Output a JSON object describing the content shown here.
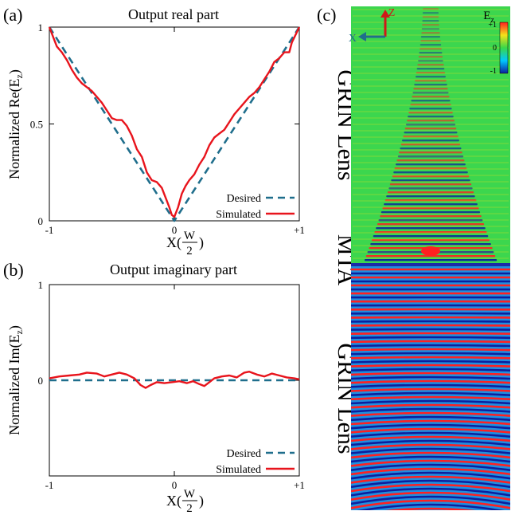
{
  "figure": {
    "panel_labels": [
      "(a)",
      "(b)",
      "(c)"
    ]
  },
  "chart_data": [
    {
      "type": "line",
      "panel": "(a)",
      "title": "Output real part",
      "ylabel": "Normalized Re(E",
      "ylabel_sub": "z",
      "ylabel_close": ")",
      "xlabel_prefix": "X(",
      "xlabel_frac_num": "W",
      "xlabel_frac_den": "2",
      "xlabel_suffix": ")",
      "xlim": [
        -1,
        1
      ],
      "ylim": [
        0,
        1
      ],
      "xticks": [
        -1,
        0,
        1
      ],
      "xtick_labels": [
        "-1",
        "0",
        "+1"
      ],
      "yticks": [
        0,
        0.5,
        1
      ],
      "ytick_labels": [
        "0",
        "0.5",
        "1"
      ],
      "legend_position": "bottom-right",
      "series": [
        {
          "name": "Desired",
          "style": "dashed",
          "color": "#1f6e8c",
          "points": [
            [
              -1,
              1.0
            ],
            [
              0,
              0.0
            ],
            [
              1,
              1.0
            ]
          ]
        },
        {
          "name": "Simulated",
          "style": "solid",
          "color": "#e8141c",
          "points": [
            [
              -1.0,
              1.0
            ],
            [
              -0.97,
              0.95
            ],
            [
              -0.94,
              0.9
            ],
            [
              -0.9,
              0.87
            ],
            [
              -0.86,
              0.83
            ],
            [
              -0.82,
              0.78
            ],
            [
              -0.78,
              0.74
            ],
            [
              -0.74,
              0.71
            ],
            [
              -0.7,
              0.69
            ],
            [
              -0.66,
              0.67
            ],
            [
              -0.62,
              0.64
            ],
            [
              -0.58,
              0.61
            ],
            [
              -0.54,
              0.57
            ],
            [
              -0.5,
              0.53
            ],
            [
              -0.46,
              0.52
            ],
            [
              -0.42,
              0.52
            ],
            [
              -0.38,
              0.49
            ],
            [
              -0.34,
              0.44
            ],
            [
              -0.3,
              0.37
            ],
            [
              -0.26,
              0.33
            ],
            [
              -0.22,
              0.25
            ],
            [
              -0.18,
              0.21
            ],
            [
              -0.14,
              0.2
            ],
            [
              -0.1,
              0.17
            ],
            [
              -0.07,
              0.12
            ],
            [
              -0.04,
              0.07
            ],
            [
              -0.02,
              0.03
            ],
            [
              0.0,
              0.02
            ],
            [
              0.03,
              0.07
            ],
            [
              0.06,
              0.14
            ],
            [
              0.09,
              0.18
            ],
            [
              0.12,
              0.21
            ],
            [
              0.16,
              0.24
            ],
            [
              0.2,
              0.29
            ],
            [
              0.24,
              0.33
            ],
            [
              0.28,
              0.39
            ],
            [
              0.32,
              0.43
            ],
            [
              0.36,
              0.45
            ],
            [
              0.4,
              0.47
            ],
            [
              0.44,
              0.51
            ],
            [
              0.48,
              0.55
            ],
            [
              0.52,
              0.58
            ],
            [
              0.56,
              0.61
            ],
            [
              0.6,
              0.64
            ],
            [
              0.64,
              0.66
            ],
            [
              0.68,
              0.69
            ],
            [
              0.72,
              0.73
            ],
            [
              0.76,
              0.77
            ],
            [
              0.8,
              0.82
            ],
            [
              0.84,
              0.84
            ],
            [
              0.88,
              0.87
            ],
            [
              0.92,
              0.87
            ],
            [
              0.94,
              0.92
            ],
            [
              0.97,
              0.96
            ],
            [
              1.0,
              1.0
            ]
          ]
        }
      ]
    },
    {
      "type": "line",
      "panel": "(b)",
      "title": "Output imaginary part",
      "ylabel": "Normalized Im(E",
      "ylabel_sub": "z",
      "ylabel_close": ")",
      "xlabel_prefix": "X(",
      "xlabel_frac_num": "W",
      "xlabel_frac_den": "2",
      "xlabel_suffix": ")",
      "xlim": [
        -1,
        1
      ],
      "ylim": [
        -1,
        1
      ],
      "xticks": [
        -1,
        0,
        1
      ],
      "xtick_labels": [
        "-1",
        "0",
        "+1"
      ],
      "yticks": [
        0,
        1
      ],
      "ytick_labels": [
        "0",
        "1"
      ],
      "legend_position": "bottom-right",
      "series": [
        {
          "name": "Desired",
          "style": "dashed",
          "color": "#1f6e8c",
          "points": [
            [
              -1,
              0.0
            ],
            [
              1,
              0.0
            ]
          ]
        },
        {
          "name": "Simulated",
          "style": "solid",
          "color": "#e8141c",
          "points": [
            [
              -1.0,
              0.02
            ],
            [
              -0.92,
              0.04
            ],
            [
              -0.84,
              0.05
            ],
            [
              -0.76,
              0.06
            ],
            [
              -0.7,
              0.08
            ],
            [
              -0.62,
              0.07
            ],
            [
              -0.56,
              0.04
            ],
            [
              -0.5,
              0.06
            ],
            [
              -0.44,
              0.08
            ],
            [
              -0.38,
              0.06
            ],
            [
              -0.32,
              0.02
            ],
            [
              -0.27,
              -0.05
            ],
            [
              -0.23,
              -0.08
            ],
            [
              -0.19,
              -0.05
            ],
            [
              -0.14,
              -0.02
            ],
            [
              -0.08,
              -0.03
            ],
            [
              -0.02,
              -0.02
            ],
            [
              0.04,
              -0.01
            ],
            [
              0.1,
              -0.03
            ],
            [
              0.15,
              -0.01
            ],
            [
              0.2,
              -0.04
            ],
            [
              0.24,
              -0.06
            ],
            [
              0.28,
              -0.02
            ],
            [
              0.32,
              0.02
            ],
            [
              0.38,
              0.04
            ],
            [
              0.44,
              0.05
            ],
            [
              0.5,
              0.03
            ],
            [
              0.56,
              0.08
            ],
            [
              0.6,
              0.09
            ],
            [
              0.66,
              0.06
            ],
            [
              0.72,
              0.04
            ],
            [
              0.78,
              0.07
            ],
            [
              0.84,
              0.05
            ],
            [
              0.9,
              0.03
            ],
            [
              0.96,
              0.02
            ],
            [
              1.0,
              0.01
            ]
          ]
        }
      ]
    },
    {
      "type": "heatmap",
      "panel": "(c)",
      "field_symbol": "E",
      "field_sub": "z",
      "colorbar_ticks": [
        "+1",
        "0",
        "-1"
      ],
      "axis_labels": [
        "Z",
        "X"
      ],
      "region_labels_top": "GRIN Lens",
      "region_label_middle": "MTA",
      "region_labels_bottom": "GRIN Lens",
      "colormap": [
        "#0b1f9e",
        "#00c8ff",
        "#38d84a",
        "#f5e21a",
        "#ff2020"
      ]
    }
  ]
}
